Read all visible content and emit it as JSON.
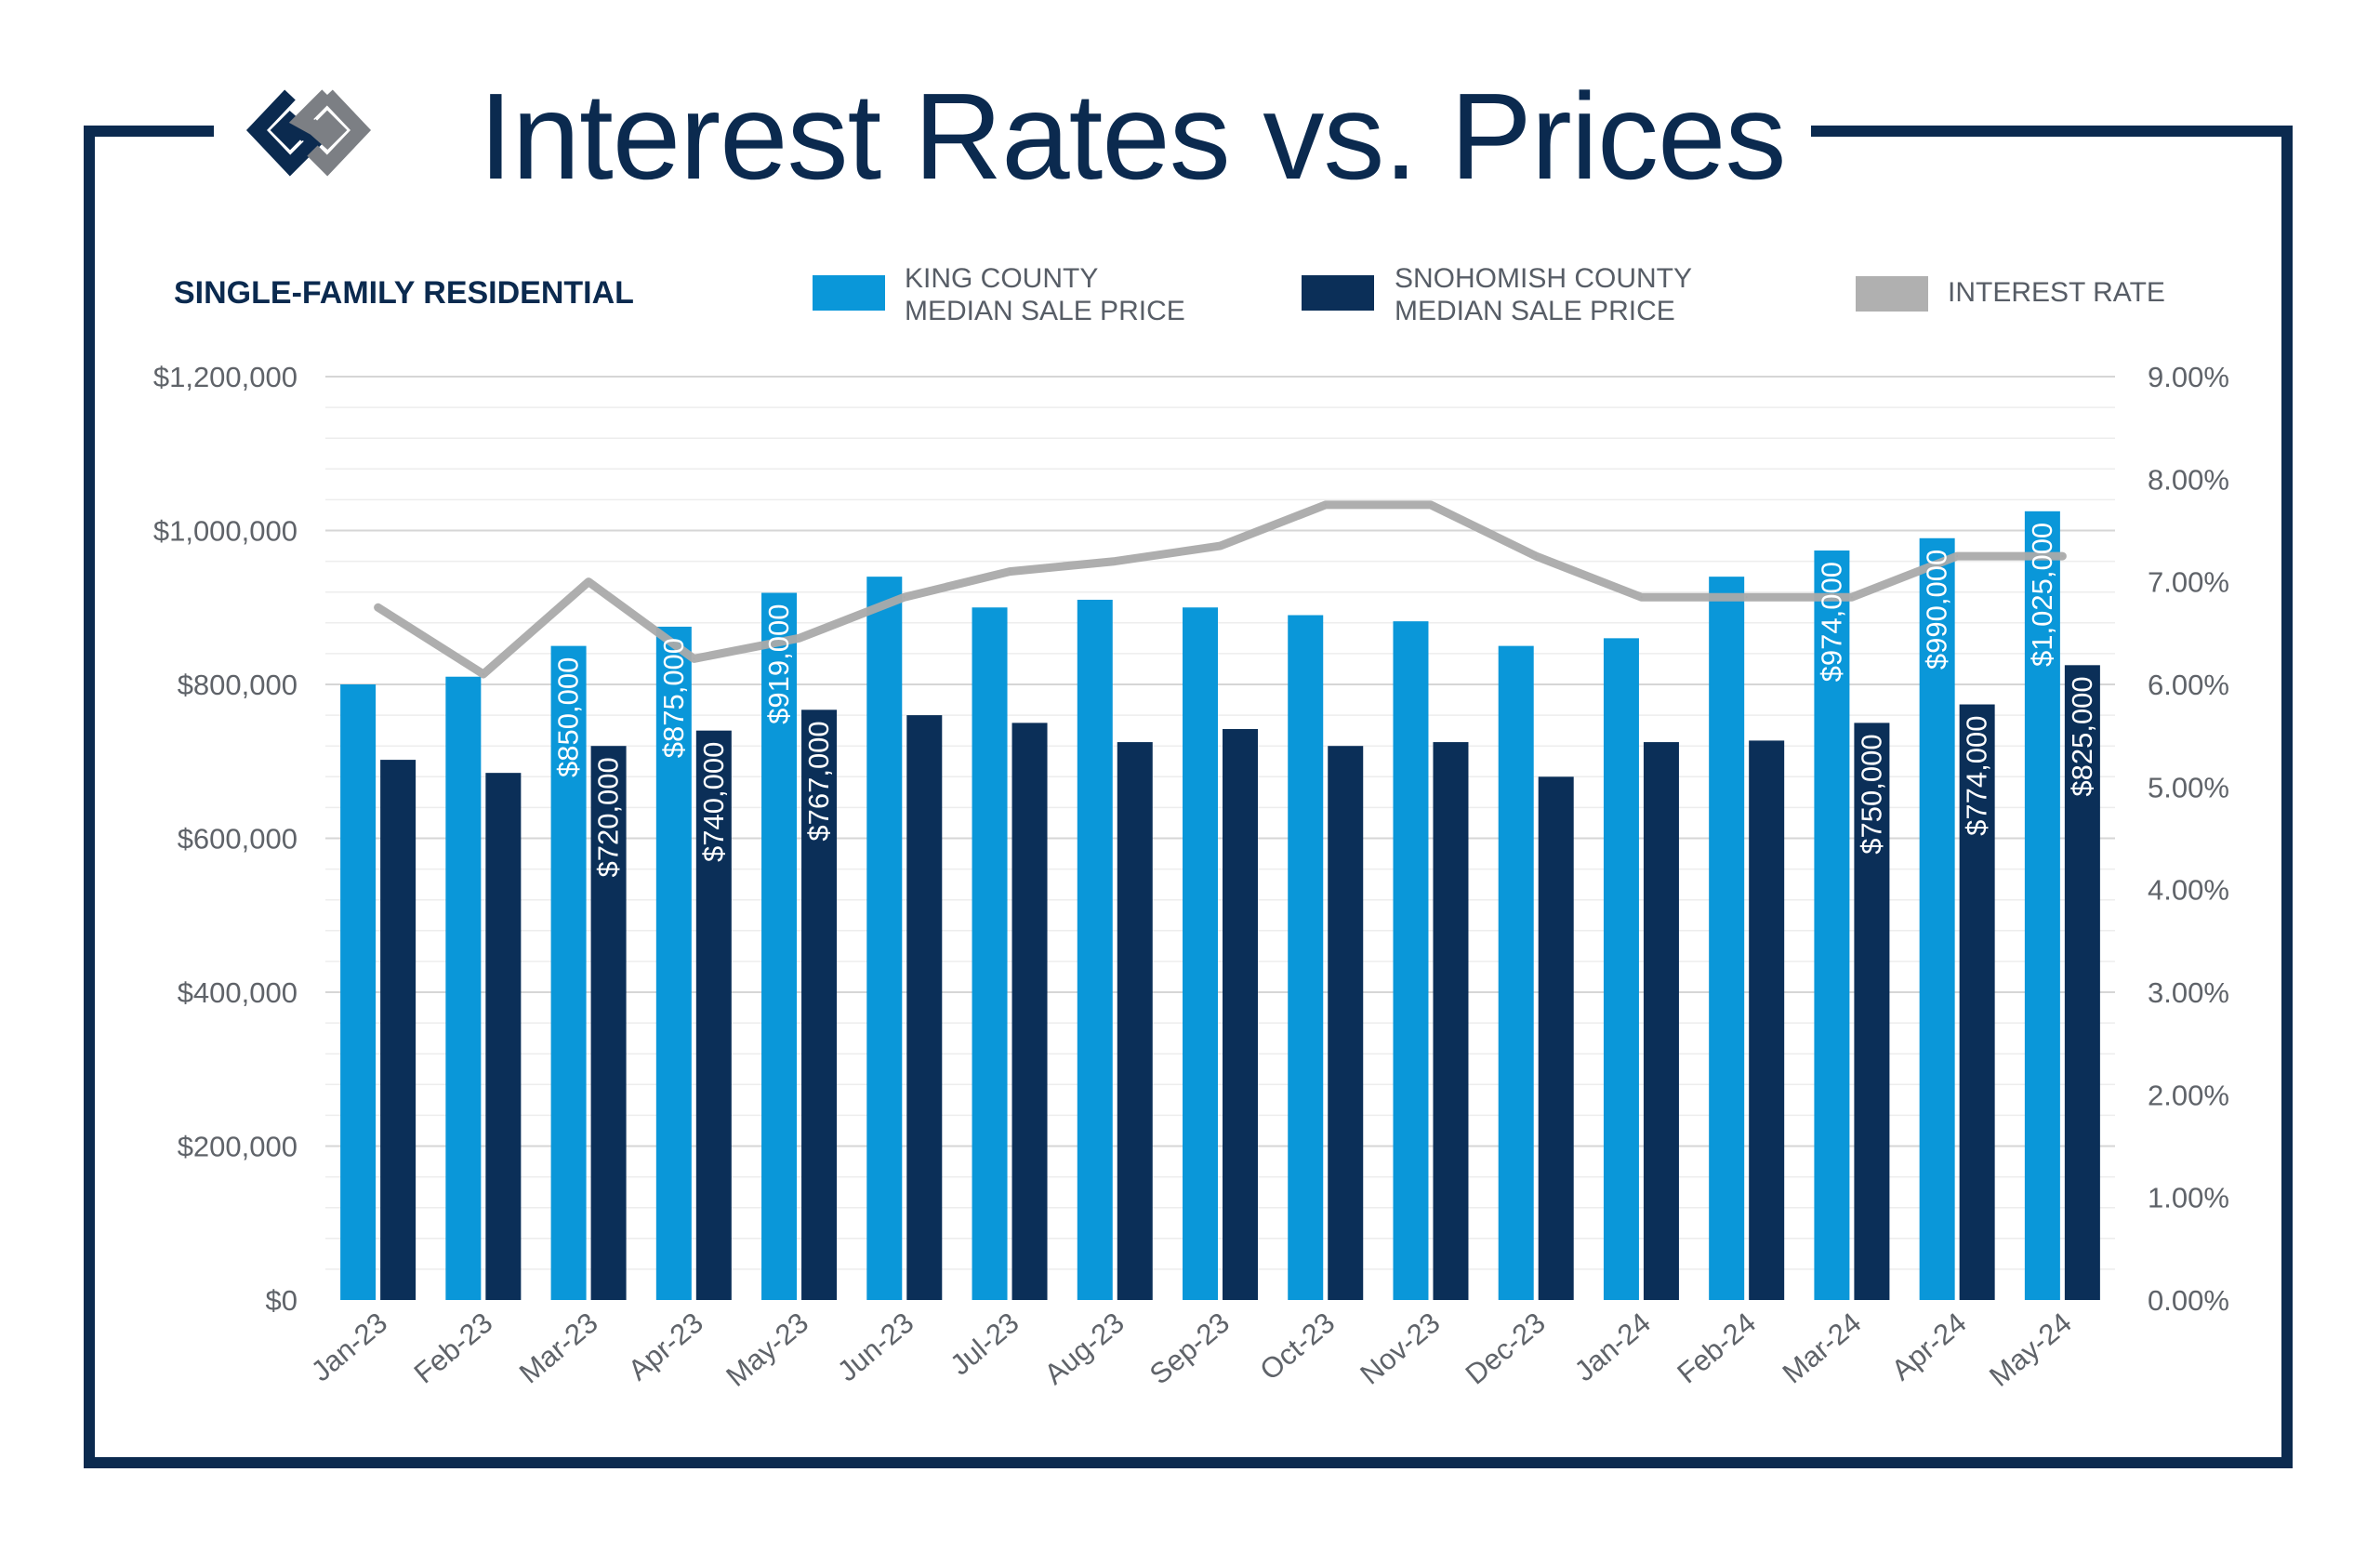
{
  "header": {
    "title": "Interest Rates vs. Prices",
    "subtitle": "SINGLE-FAMILY RESIDENTIAL"
  },
  "logo": {
    "icon": "diamond-interlock-logo-icon",
    "colors": [
      "#0b2a4f",
      "#7c7f84"
    ]
  },
  "legend": [
    {
      "lines": [
        "KING COUNTY",
        "MEDIAN SALE PRICE"
      ],
      "color": "#0a97d9"
    },
    {
      "lines": [
        "SNOHOMISH COUNTY",
        "MEDIAN SALE PRICE"
      ],
      "color": "#0b2f58"
    },
    {
      "lines": [
        "INTEREST RATE"
      ],
      "color": "#b0b0b0"
    }
  ],
  "colors": {
    "frame": "#0b2a4f",
    "king": "#0a97d9",
    "snohomish": "#0b2f58",
    "rate": "#aaaaaa",
    "grid": "#e4e4e4",
    "tick_text": "#5f6369"
  },
  "chart_data": {
    "type": "bar",
    "categories": [
      "Jan-23",
      "Feb-23",
      "Mar-23",
      "Apr-23",
      "May-23",
      "Jun-23",
      "Jul-23",
      "Aug-23",
      "Sep-23",
      "Oct-23",
      "Nov-23",
      "Dec-23",
      "Jan-24",
      "Feb-24",
      "Mar-24",
      "Apr-24",
      "May-24"
    ],
    "series": [
      {
        "name": "KING COUNTY MEDIAN SALE PRICE",
        "axis": "left",
        "values": [
          800000,
          810000,
          850000,
          875000,
          919000,
          940000,
          900000,
          910000,
          900000,
          890000,
          882000,
          850000,
          860000,
          940000,
          974000,
          990000,
          1025000
        ],
        "labels": [
          "",
          "",
          "$850,000",
          "$875,000",
          "$919,000",
          "",
          "",
          "",
          "",
          "",
          "",
          "",
          "",
          "",
          "$974,000",
          "$990,000",
          "$1,025,000"
        ]
      },
      {
        "name": "SNOHOMISH COUNTY MEDIAN SALE PRICE",
        "axis": "left",
        "values": [
          702000,
          685000,
          720000,
          740000,
          767000,
          760000,
          750000,
          725000,
          742000,
          720000,
          725000,
          680000,
          725000,
          727000,
          750000,
          774000,
          825000
        ],
        "labels": [
          "",
          "",
          "$720,000",
          "$740,000",
          "$767,000",
          "",
          "",
          "",
          "",
          "",
          "",
          "",
          "",
          "",
          "$750,000",
          "$774,000",
          "$825,000"
        ]
      },
      {
        "name": "INTEREST RATE",
        "axis": "right",
        "type": "line",
        "values": [
          6.75,
          6.1,
          7.0,
          6.25,
          6.45,
          6.85,
          7.1,
          7.2,
          7.35,
          7.75,
          7.75,
          7.25,
          6.85,
          6.85,
          6.85,
          7.25,
          7.25
        ]
      }
    ],
    "y_left": {
      "ylim": [
        0,
        1200000
      ],
      "ticks": [
        "$0",
        "$200,000",
        "$400,000",
        "$600,000",
        "$800,000",
        "$1,000,000",
        "$1,200,000"
      ]
    },
    "y_right": {
      "ylim": [
        0,
        9
      ],
      "ticks": [
        "0.00%",
        "1.00%",
        "2.00%",
        "3.00%",
        "4.00%",
        "5.00%",
        "6.00%",
        "7.00%",
        "8.00%",
        "9.00%"
      ]
    },
    "grid": true
  }
}
